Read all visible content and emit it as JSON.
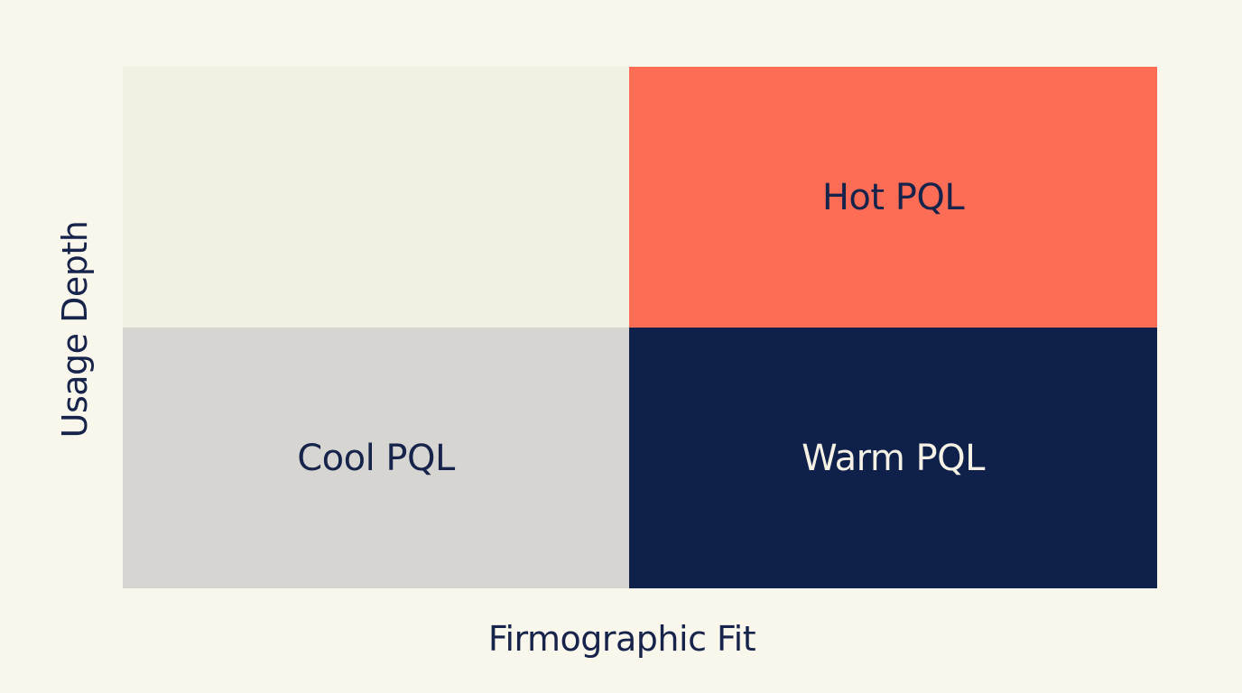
{
  "axes": {
    "x_label": "Firmographic Fit",
    "y_label": "Usage Depth"
  },
  "quadrants": {
    "top_left": {
      "label": "",
      "color": "#f2efe3"
    },
    "top_right": {
      "label": "Hot PQL",
      "color": "#fd6c54"
    },
    "bottom_left": {
      "label": "Cool PQL",
      "color": "#d6d5d1"
    },
    "bottom_right": {
      "label": "Warm PQL",
      "color": "#0f214b"
    }
  }
}
